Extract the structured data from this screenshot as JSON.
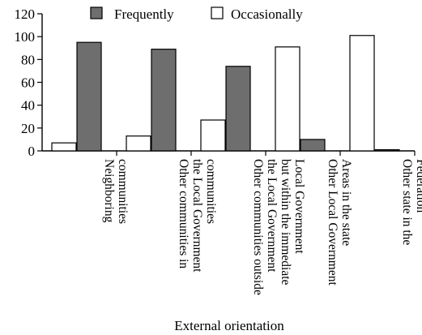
{
  "chart_data": {
    "type": "bar",
    "xlabel": "External orientation",
    "ylabel": "",
    "ylim": [
      0,
      120
    ],
    "yticks": [
      0,
      20,
      40,
      60,
      80,
      100,
      120
    ],
    "legend_position": "top",
    "categories": [
      [
        "Neighboring",
        "communities"
      ],
      [
        "Other communities in",
        "the Local Government",
        "communities"
      ],
      [
        "Other communities outside",
        "the Local Government",
        "but within the immediate",
        "Local Government"
      ],
      [
        "Other Local Government",
        "Areas in the state"
      ],
      [
        "Other state in the",
        "Federation"
      ]
    ],
    "series": [
      {
        "name": "Occasionally",
        "color": "#ffffff",
        "values": [
          7,
          13,
          27,
          91,
          101
        ]
      },
      {
        "name": "Frequently",
        "color": "#6e6e6e",
        "values": [
          95,
          89,
          74,
          10,
          1
        ]
      }
    ]
  }
}
